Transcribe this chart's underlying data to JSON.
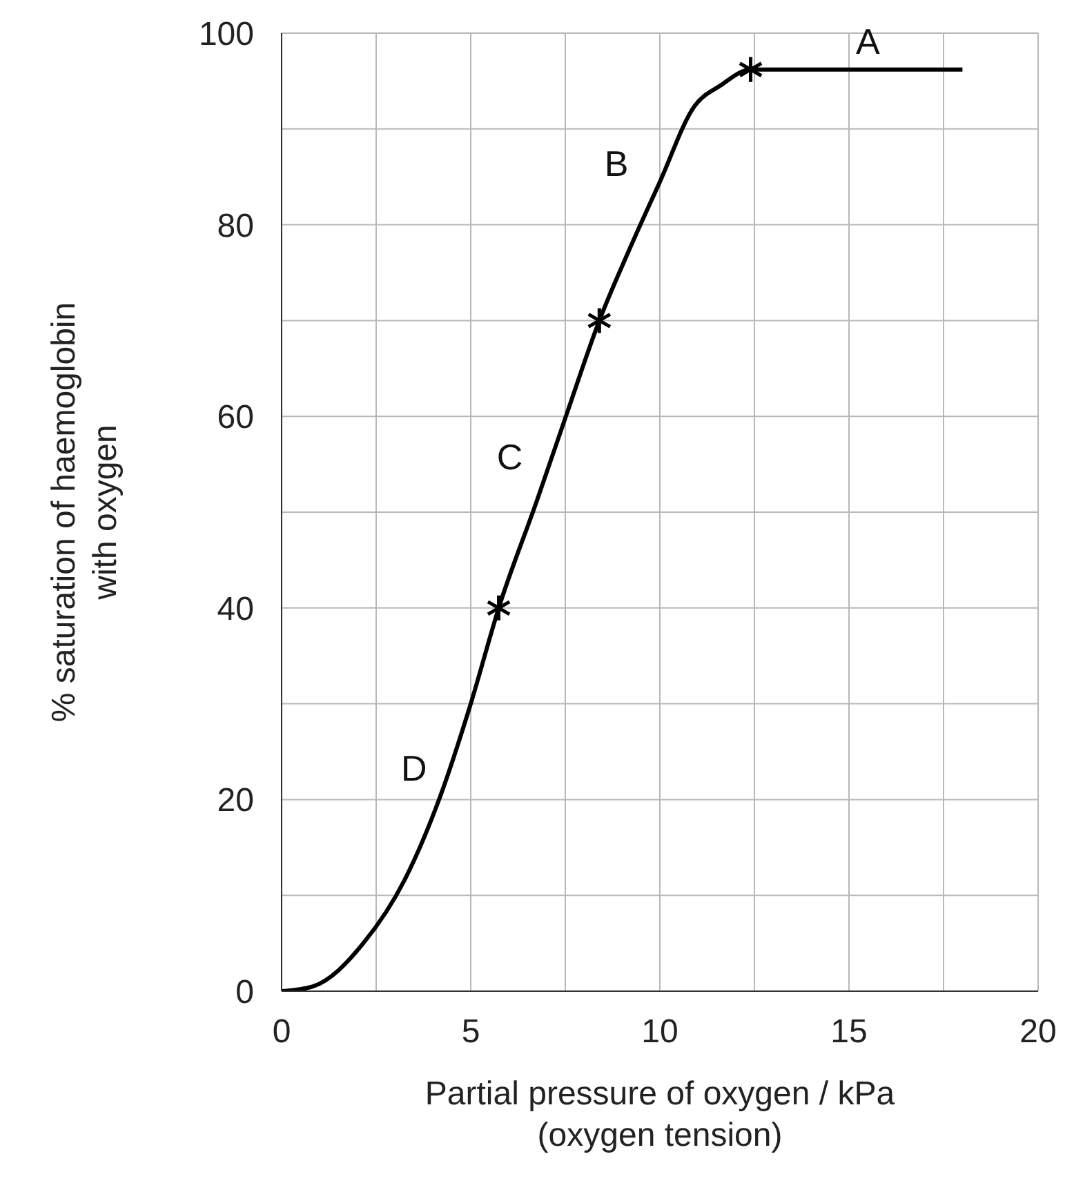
{
  "chart_data": {
    "type": "line",
    "xlabel": "Partial pressure of oxygen / kPa\n(oxygen tension)",
    "ylabel": "% saturation of haemoglobin\nwith oxygen",
    "xlim": [
      0,
      20
    ],
    "ylim": [
      0,
      100
    ],
    "xticks": [
      0,
      {
        "value": 2.5,
        "label": null
      },
      5,
      {
        "value": 7.5,
        "label": null
      },
      10,
      {
        "value": 12.5,
        "label": null
      },
      15,
      {
        "value": 17.5,
        "label": null
      },
      20
    ],
    "yticks": [
      0,
      {
        "value": 10,
        "label": null
      },
      20,
      {
        "value": 30,
        "label": null
      },
      40,
      {
        "value": 50,
        "label": null
      },
      60,
      {
        "value": 70,
        "label": null
      },
      80,
      {
        "value": 90,
        "label": null
      },
      100
    ],
    "grid": true,
    "line_style": "solid",
    "series": [
      {
        "color": "#000000",
        "marker": "none",
        "x": [
          0,
          0.83,
          2.18,
          3.25,
          4.19,
          5.0,
          5.74,
          6.75,
          7.55,
          8.4,
          9.17,
          9.98,
          10.92,
          11.59,
          12.4,
          18
        ],
        "values": [
          0,
          0.5,
          5.1,
          11.6,
          20.3,
          30,
          40,
          51.2,
          60.4,
          70,
          77.2,
          84.3,
          92.4,
          94.5,
          96.2,
          96.2
        ]
      },
      {
        "type": "scatter",
        "color": "#000000",
        "marker": "cross",
        "x": [
          5.74,
          8.4,
          12.4
        ],
        "values": [
          40,
          70,
          96.2
        ]
      }
    ],
    "annotations": [
      "A",
      "B",
      "C",
      "D"
    ]
  }
}
